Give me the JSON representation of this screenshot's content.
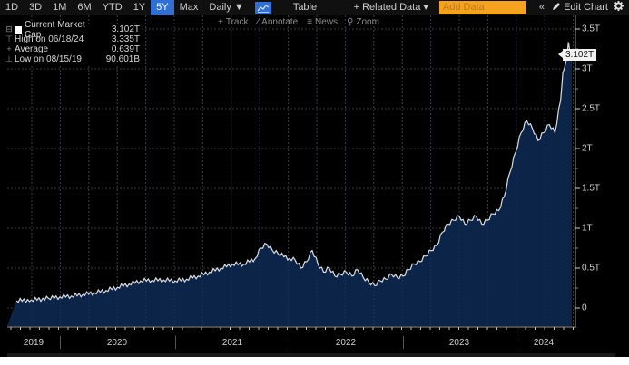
{
  "toolbar": {
    "ranges": [
      "1D",
      "3D",
      "1M",
      "6M",
      "YTD",
      "1Y",
      "5Y",
      "Max"
    ],
    "active_range": "5Y",
    "frequency": "Daily ▼",
    "chart_type_icon": "line-chart-icon",
    "table_label": "Table",
    "related_data_label": "+ Related Data ▾",
    "add_data_placeholder": "Add Data",
    "collapse_label": "«",
    "edit_chart_label": "Edit Chart",
    "settings_icon": "gear-icon"
  },
  "subtools": {
    "track": "Track",
    "annotate": "Annotate",
    "news": "News",
    "zoom": "Zoom"
  },
  "legend": {
    "rows": [
      {
        "mark": "■",
        "label": "Current Market Cap",
        "value": "3.102T"
      },
      {
        "mark": "⊤",
        "label": "High on 06/18/24",
        "value": "3.335T"
      },
      {
        "mark": "+",
        "label": "Average",
        "value": "0.639T"
      },
      {
        "mark": "⊥",
        "label": "Low on 08/15/19",
        "value": "90.601B"
      }
    ]
  },
  "last_value_tag": "3.102T",
  "colors": {
    "background": "#000000",
    "area_fill": "#0b2448",
    "line": "#d9dde3",
    "grid": "#3a3a3a",
    "active_button": "#2f6fd6",
    "add_data": "#f5a31f"
  },
  "chart_data": {
    "type": "area",
    "title": "Current Market Cap",
    "xlabel": "",
    "ylabel": "",
    "y_unit": "T (trillions USD)",
    "ylim": [
      0,
      3.5
    ],
    "yticks": [
      "0",
      "0.5T",
      "1T",
      "1.5T",
      "2T",
      "2.5T",
      "3T",
      "3.5T"
    ],
    "ytick_values": [
      0,
      0.5,
      1,
      1.5,
      2,
      2.5,
      3,
      3.5
    ],
    "xticks": [
      "2019",
      "2020",
      "2021",
      "2022",
      "2023",
      "2024"
    ],
    "grid": true,
    "legend_position": "top-left",
    "series": [
      {
        "name": "Current Market Cap",
        "x": [
          2019.62,
          2019.75,
          2019.9,
          2020.0,
          2020.1,
          2020.2,
          2020.3,
          2020.4,
          2020.5,
          2020.6,
          2020.7,
          2020.8,
          2020.9,
          2021.0,
          2021.1,
          2021.2,
          2021.3,
          2021.4,
          2021.5,
          2021.6,
          2021.7,
          2021.75,
          2021.8,
          2021.85,
          2021.9,
          2022.0,
          2022.05,
          2022.1,
          2022.15,
          2022.2,
          2022.25,
          2022.3,
          2022.35,
          2022.4,
          2022.45,
          2022.5,
          2022.55,
          2022.6,
          2022.65,
          2022.7,
          2022.75,
          2022.8,
          2022.85,
          2022.9,
          2022.95,
          2023.0,
          2023.05,
          2023.1,
          2023.15,
          2023.2,
          2023.25,
          2023.3,
          2023.35,
          2023.4,
          2023.45,
          2023.5,
          2023.55,
          2023.6,
          2023.65,
          2023.7,
          2023.75,
          2023.8,
          2023.85,
          2023.9,
          2023.95,
          2024.0,
          2024.05,
          2024.1,
          2024.15,
          2024.2,
          2024.25,
          2024.3,
          2024.35,
          2024.4,
          2024.42,
          2024.45,
          2024.47,
          2024.5
        ],
        "values": [
          0.09,
          0.1,
          0.12,
          0.14,
          0.15,
          0.17,
          0.19,
          0.22,
          0.26,
          0.3,
          0.34,
          0.35,
          0.35,
          0.34,
          0.36,
          0.4,
          0.45,
          0.5,
          0.55,
          0.55,
          0.62,
          0.75,
          0.8,
          0.72,
          0.68,
          0.62,
          0.6,
          0.5,
          0.58,
          0.72,
          0.55,
          0.45,
          0.5,
          0.4,
          0.42,
          0.45,
          0.4,
          0.48,
          0.38,
          0.32,
          0.28,
          0.34,
          0.36,
          0.42,
          0.38,
          0.4,
          0.48,
          0.55,
          0.58,
          0.65,
          0.72,
          0.78,
          0.95,
          1.05,
          1.1,
          1.15,
          1.05,
          1.1,
          1.15,
          1.05,
          1.1,
          1.18,
          1.22,
          1.4,
          1.7,
          1.95,
          2.2,
          2.35,
          2.25,
          2.1,
          2.2,
          2.3,
          2.2,
          2.6,
          2.95,
          3.1,
          3.335,
          3.102
        ]
      }
    ]
  }
}
